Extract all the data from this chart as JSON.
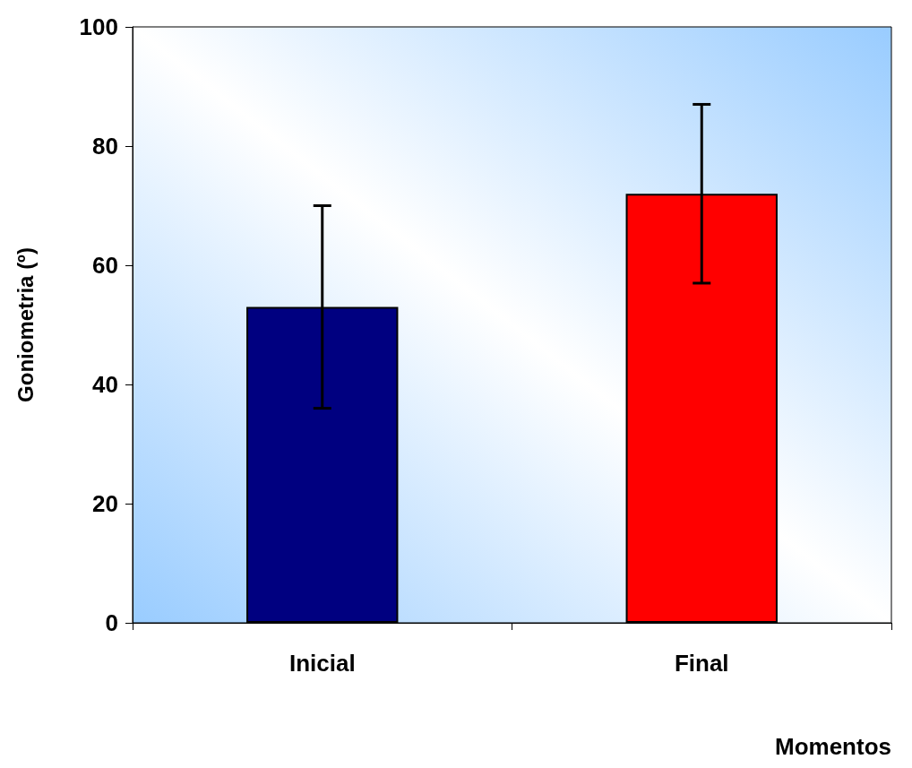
{
  "chart_data": {
    "type": "bar",
    "xlabel": "Momentos",
    "ylabel": "Goniometria (º)",
    "categories": [
      "Inicial",
      "Final"
    ],
    "values": [
      53,
      72
    ],
    "colors": [
      "#000080",
      "#ff0000"
    ],
    "errors": [
      [
        36,
        70
      ],
      [
        57,
        87
      ]
    ],
    "ylim": [
      0,
      100
    ],
    "yticks": [
      0,
      20,
      40,
      60,
      80,
      100
    ],
    "grid": false
  }
}
